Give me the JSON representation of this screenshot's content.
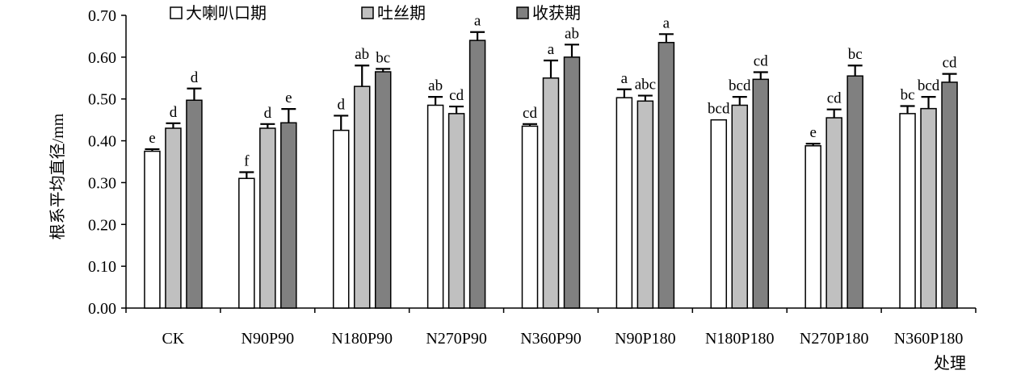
{
  "chart_data": {
    "type": "bar",
    "title": "",
    "xlabel": "处理",
    "ylabel": "根系平均直径/mm",
    "ylim": [
      0,
      0.7
    ],
    "ytick_step": 0.1,
    "ytick_labels": [
      "0.00",
      "0.10",
      "0.20",
      "0.30",
      "0.40",
      "0.50",
      "0.60",
      "0.70"
    ],
    "categories": [
      "CK",
      "N90P90",
      "N180P90",
      "N270P90",
      "N360P90",
      "N90P180",
      "N180P180",
      "N270P180",
      "N360P180"
    ],
    "legend_position": "top",
    "series": [
      {
        "name": "大喇叭口期",
        "color": "#ffffff",
        "values": [
          0.375,
          0.31,
          0.425,
          0.485,
          0.435,
          0.503,
          0.45,
          0.388,
          0.465
        ],
        "errors": [
          0.005,
          0.015,
          0.035,
          0.02,
          0.005,
          0.02,
          0.0,
          0.005,
          0.018
        ],
        "labels": [
          "e",
          "f",
          "d",
          "ab",
          "cd",
          "a",
          "bcd",
          "e",
          "bc"
        ]
      },
      {
        "name": "吐丝期",
        "color": "#c0c0c0",
        "values": [
          0.43,
          0.43,
          0.53,
          0.465,
          0.55,
          0.495,
          0.485,
          0.455,
          0.477
        ],
        "errors": [
          0.012,
          0.01,
          0.05,
          0.017,
          0.042,
          0.013,
          0.02,
          0.02,
          0.028
        ],
        "labels": [
          "d",
          "d",
          "ab",
          "cd",
          "a",
          "abc",
          "bcd",
          "cd",
          "bcd"
        ]
      },
      {
        "name": "收获期",
        "color": "#808080",
        "values": [
          0.497,
          0.443,
          0.565,
          0.64,
          0.6,
          0.635,
          0.547,
          0.555,
          0.54
        ],
        "errors": [
          0.028,
          0.033,
          0.007,
          0.02,
          0.03,
          0.02,
          0.017,
          0.025,
          0.02
        ],
        "labels": [
          "d",
          "e",
          "bc",
          "a",
          "ab",
          "a",
          "cd",
          "bc",
          "cd"
        ]
      }
    ]
  }
}
